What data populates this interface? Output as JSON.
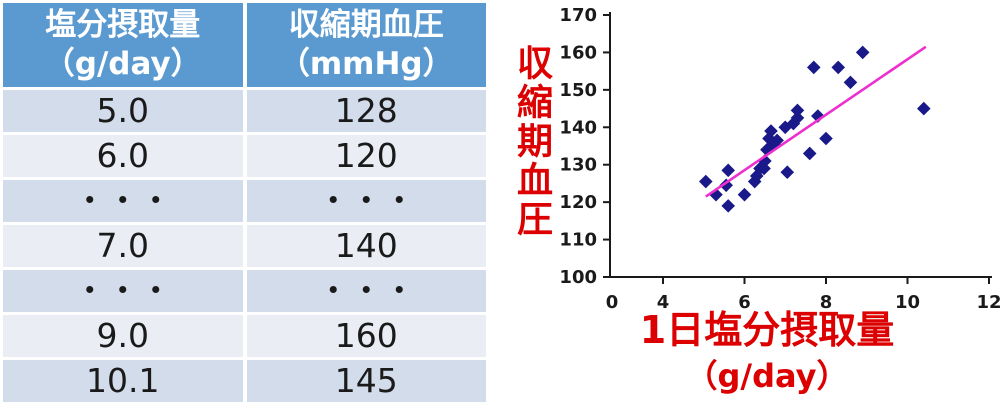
{
  "table": {
    "columns": [
      {
        "title": "塩分摂取量",
        "unit": "（g/day）"
      },
      {
        "title": "収縮期血圧",
        "unit": "（mmHg）"
      }
    ],
    "rows": [
      [
        "5.0",
        "128"
      ],
      [
        "6.0",
        "120"
      ],
      [
        "・・・",
        "・・・"
      ],
      [
        "7.0",
        "140"
      ],
      [
        "・・・",
        "・・・"
      ],
      [
        "9.0",
        "160"
      ],
      [
        "10.1",
        "145"
      ]
    ]
  },
  "chart_data": {
    "type": "scatter",
    "title": "",
    "xlabel": "1日塩分摂取量",
    "xlabel_unit": "（g/day）",
    "ylabel": "収縮期血圧",
    "xlim": [
      0,
      12
    ],
    "ylim": [
      100,
      170
    ],
    "x_ticks": [
      0,
      4,
      6,
      8,
      10,
      12
    ],
    "y_ticks": [
      100,
      110,
      120,
      130,
      140,
      150,
      160,
      170
    ],
    "grid": false,
    "legend_position": "none",
    "axis_note": "x-axis segment 0-4 is compressed relative to 4-12",
    "points": [
      [
        5.05,
        125.5
      ],
      [
        5.3,
        122
      ],
      [
        5.55,
        124.5
      ],
      [
        5.6,
        128.5
      ],
      [
        5.6,
        119
      ],
      [
        6.0,
        122
      ],
      [
        6.25,
        125.5
      ],
      [
        6.3,
        127
      ],
      [
        6.38,
        129
      ],
      [
        6.48,
        129
      ],
      [
        6.5,
        131
      ],
      [
        6.55,
        134
      ],
      [
        6.6,
        137
      ],
      [
        6.65,
        139
      ],
      [
        6.72,
        135.5
      ],
      [
        6.8,
        136.5
      ],
      [
        7.0,
        140
      ],
      [
        7.05,
        128
      ],
      [
        7.2,
        141
      ],
      [
        7.3,
        142.5
      ],
      [
        7.3,
        144.5
      ],
      [
        7.6,
        133
      ],
      [
        7.7,
        156
      ],
      [
        7.8,
        143
      ],
      [
        8.0,
        137
      ],
      [
        8.3,
        156
      ],
      [
        8.6,
        152
      ],
      [
        8.9,
        160
      ],
      [
        10.4,
        145
      ]
    ],
    "trendline": {
      "x1": 5.05,
      "y1": 121.5,
      "x2": 10.45,
      "y2": 161.5
    }
  },
  "colors": {
    "header_bg": "#5B9AD0",
    "header_text": "#FFFFFF",
    "row_odd": "#D3DCEB",
    "row_even": "#EAEDF4",
    "cell_text": "#1A1A1A",
    "axis": "#1A1A1A",
    "red_label": "#DC0000",
    "point": "#191989",
    "trend": "#EE2FD0"
  }
}
